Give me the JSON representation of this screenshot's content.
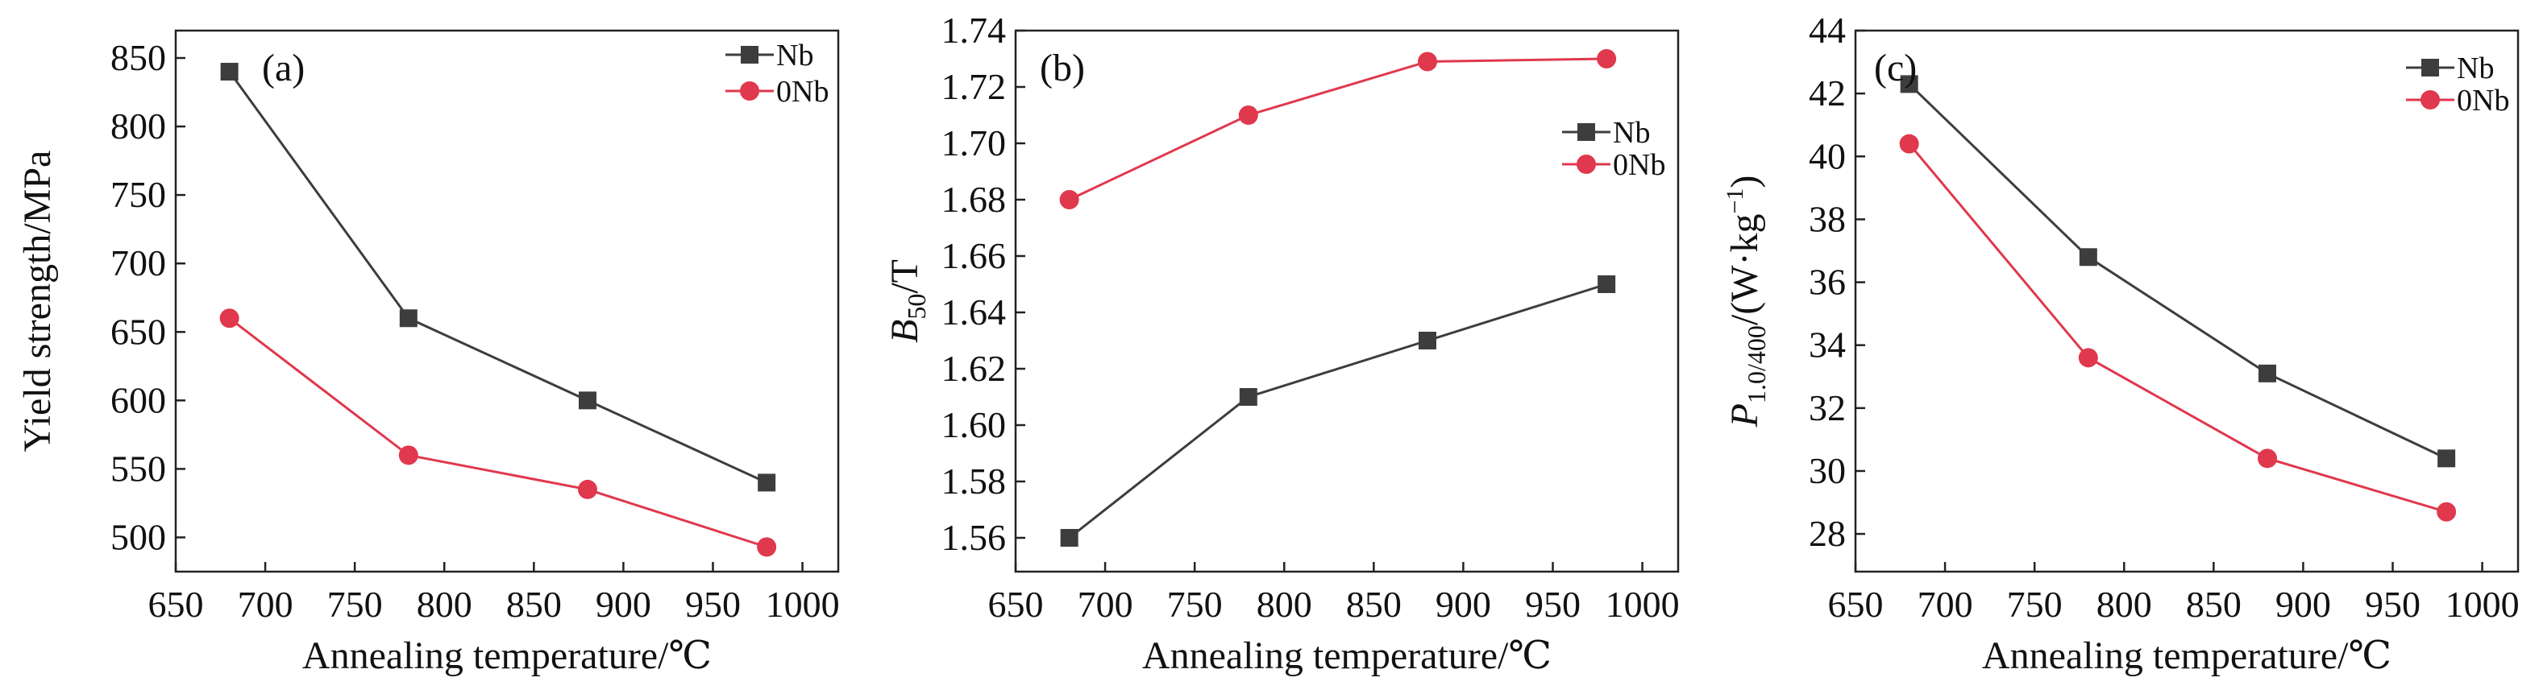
{
  "colors": {
    "Nb": "#3d3d3d",
    "0Nb": "#e0384c"
  },
  "chart_data": [
    {
      "type": "line",
      "panel_label": "(a)",
      "x": [
        680,
        780,
        880,
        980
      ],
      "series": [
        {
          "name": "Nb",
          "values": [
            840,
            660,
            600,
            540
          ]
        },
        {
          "name": "0Nb",
          "values": [
            660,
            560,
            535,
            493
          ]
        }
      ],
      "xlabel": "Annealing temperature/℃",
      "ylabel": "Yield strength/MPa",
      "xlim": [
        650,
        1020
      ],
      "ylim": [
        475,
        870
      ],
      "xticks": [
        650,
        700,
        750,
        800,
        850,
        900,
        950,
        1000
      ],
      "yticks": [
        500,
        550,
        600,
        650,
        700,
        750,
        800,
        850
      ],
      "legend": "top-right",
      "grid": false
    },
    {
      "type": "line",
      "panel_label": "(b)",
      "x": [
        680,
        780,
        880,
        980
      ],
      "series": [
        {
          "name": "Nb",
          "values": [
            1.56,
            1.61,
            1.63,
            1.65
          ]
        },
        {
          "name": "0Nb",
          "values": [
            1.68,
            1.71,
            1.729,
            1.73
          ]
        }
      ],
      "xlabel": "Annealing temperature/℃",
      "ylabel_main": "B",
      "ylabel_sub": "50",
      "ylabel_unit": "/T",
      "xlim": [
        650,
        1020
      ],
      "ylim": [
        1.548,
        1.74
      ],
      "xticks": [
        650,
        700,
        750,
        800,
        850,
        900,
        950,
        1000
      ],
      "yticks": [
        "1.56",
        "1.58",
        "1.60",
        "1.62",
        "1.64",
        "1.66",
        "1.68",
        "1.70",
        "1.72",
        "1.74"
      ],
      "legend": "right",
      "grid": false
    },
    {
      "type": "line",
      "panel_label": "(c)",
      "x": [
        680,
        780,
        880,
        980
      ],
      "series": [
        {
          "name": "Nb",
          "values": [
            42.3,
            36.8,
            33.1,
            30.4
          ]
        },
        {
          "name": "0Nb",
          "values": [
            40.4,
            33.6,
            30.4,
            28.7
          ]
        }
      ],
      "xlabel": "Annealing temperature/℃",
      "ylabel_main": "P",
      "ylabel_sub": "1.0/400",
      "ylabel_unit": "/(W·kg",
      "ylabel_sup": "−1",
      "ylabel_close": ")",
      "xlim": [
        650,
        1020
      ],
      "ylim": [
        26.8,
        44
      ],
      "xticks": [
        650,
        700,
        750,
        800,
        850,
        900,
        950,
        1000
      ],
      "yticks": [
        28,
        30,
        32,
        34,
        36,
        38,
        40,
        42,
        44
      ],
      "legend": "top-right",
      "grid": false
    }
  ]
}
